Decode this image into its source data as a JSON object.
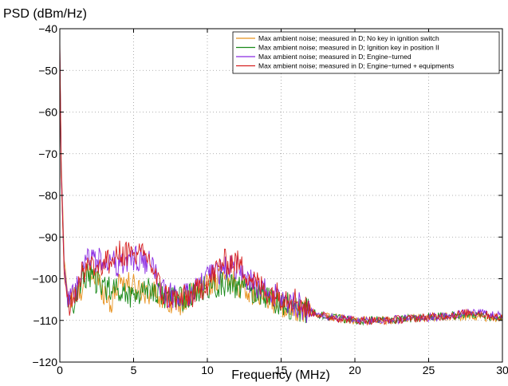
{
  "chart_data": {
    "type": "line",
    "title": "",
    "xlabel": "Frequency (MHz)",
    "ylabel": "PSD (dBm/Hz)",
    "xlim": [
      0,
      30
    ],
    "ylim": [
      -120,
      -40
    ],
    "x_ticks": [
      0,
      5,
      10,
      15,
      20,
      25,
      30
    ],
    "y_ticks": [
      -120,
      -110,
      -100,
      -90,
      -80,
      -70,
      -60,
      -50,
      -40
    ],
    "y_tick_labels": [
      "−120",
      "−110",
      "−100",
      "−90",
      "−80",
      "−70",
      "−60",
      "−50",
      "−40"
    ],
    "grid": true,
    "legend_position": "top-right",
    "series": [
      {
        "name": "Max ambient noise; measured in D; No key in ignition switch",
        "color": "#e8921e",
        "x": [
          0,
          0.1,
          0.3,
          0.6,
          1.0,
          1.5,
          2.0,
          2.5,
          3.0,
          3.5,
          4.0,
          5.0,
          6.0,
          7.0,
          8.0,
          9.0,
          10.0,
          11.0,
          12.0,
          13.0,
          14.0,
          15.0,
          16.0,
          17.0,
          18.0,
          20.0,
          22.0,
          24.0,
          26.0,
          28.0,
          30.0
        ],
        "y": [
          -45,
          -72,
          -95,
          -106,
          -104,
          -102,
          -98,
          -100,
          -103,
          -106,
          -100,
          -102,
          -103,
          -104,
          -106,
          -104,
          -101,
          -100,
          -101,
          -103,
          -105,
          -106,
          -107,
          -108,
          -109,
          -110,
          -110,
          -109.5,
          -109,
          -109,
          -109.5
        ]
      },
      {
        "name": "Max ambient noise; measured in D; Ignition key in position II",
        "color": "#1a8a1a",
        "x": [
          0,
          0.1,
          0.3,
          0.6,
          1.0,
          1.5,
          2.0,
          2.5,
          3.0,
          3.5,
          4.0,
          5.0,
          6.0,
          7.0,
          8.0,
          9.0,
          10.0,
          11.0,
          12.0,
          13.0,
          14.0,
          15.0,
          16.0,
          17.0,
          18.0,
          20.0,
          22.0,
          24.0,
          26.0,
          28.0,
          30.0
        ],
        "y": [
          -46,
          -75,
          -98,
          -107,
          -105,
          -100,
          -99,
          -101,
          -102,
          -102,
          -103,
          -104,
          -102,
          -104,
          -105,
          -104,
          -102,
          -101,
          -102,
          -103,
          -104,
          -106,
          -107,
          -108,
          -109,
          -110,
          -110,
          -109.5,
          -109,
          -108.5,
          -109.5
        ]
      },
      {
        "name": "Max ambient noise; measured in D; Engine−turned",
        "color": "#8a2be2",
        "x": [
          0,
          0.1,
          0.3,
          0.6,
          1.0,
          1.5,
          2.0,
          2.5,
          3.0,
          3.5,
          4.0,
          5.0,
          6.0,
          7.0,
          8.0,
          9.0,
          10.0,
          11.0,
          12.0,
          13.0,
          14.0,
          15.0,
          16.0,
          17.0,
          18.0,
          20.0,
          22.0,
          24.0,
          26.0,
          28.0,
          30.0
        ],
        "y": [
          -44,
          -74,
          -97,
          -106,
          -104,
          -99,
          -94,
          -96,
          -95,
          -96,
          -97,
          -95,
          -96,
          -103,
          -105,
          -103,
          -100,
          -98,
          -97,
          -101,
          -103,
          -105,
          -106,
          -108,
          -109,
          -110,
          -110,
          -109.5,
          -109,
          -108,
          -109
        ]
      },
      {
        "name": "Max ambient noise; measured in D; Engine−turned + equipments",
        "color": "#d62020",
        "x": [
          0,
          0.1,
          0.3,
          0.6,
          1.0,
          1.5,
          2.0,
          2.5,
          3.0,
          3.5,
          4.0,
          5.0,
          6.0,
          7.0,
          8.0,
          9.0,
          10.0,
          11.0,
          12.0,
          13.0,
          14.0,
          15.0,
          16.0,
          17.0,
          18.0,
          20.0,
          22.0,
          24.0,
          26.0,
          28.0,
          30.0
        ],
        "y": [
          -43,
          -76,
          -99,
          -107,
          -104,
          -99,
          -96,
          -97,
          -96,
          -96,
          -94,
          -94,
          -95,
          -104,
          -105,
          -104,
          -101,
          -96,
          -96,
          -100,
          -103,
          -104,
          -105,
          -108,
          -109,
          -110,
          -110,
          -109.5,
          -109,
          -108,
          -109.5
        ]
      }
    ]
  }
}
